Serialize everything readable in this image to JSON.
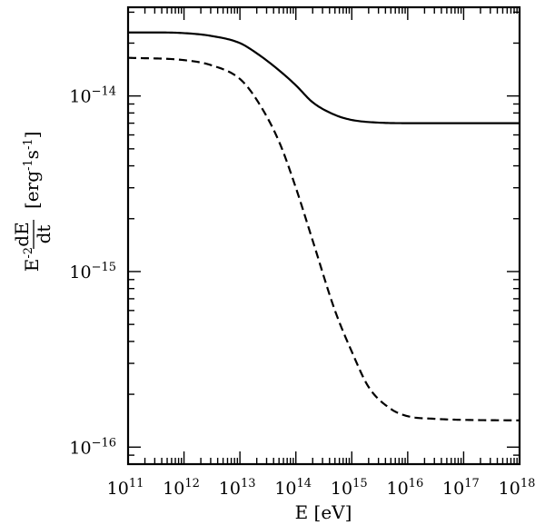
{
  "chart_data": {
    "type": "line",
    "title": "",
    "xlabel": "E [eV]",
    "ylabel": {
      "prefix": "E",
      "prefix_exponent": "-2",
      "numerator": "dE",
      "denominator": "dt",
      "units_open": "[erg",
      "units_exp1": "-1",
      "units_mid": "s",
      "units_exp2": "-1",
      "units_close": "]"
    },
    "x_scale": "log",
    "y_scale": "log",
    "xlim": [
      100000000000.0,
      1e+18
    ],
    "ylim": [
      8e-17,
      3.2e-14
    ],
    "grid": false,
    "legend": "none",
    "x_tick_labels": [
      {
        "value": 100000000000.0,
        "base": "10",
        "exp": "11"
      },
      {
        "value": 1000000000000.0,
        "base": "10",
        "exp": "12"
      },
      {
        "value": 10000000000000.0,
        "base": "10",
        "exp": "13"
      },
      {
        "value": 100000000000000.0,
        "base": "10",
        "exp": "14"
      },
      {
        "value": 1000000000000000.0,
        "base": "10",
        "exp": "15"
      },
      {
        "value": 1e+16,
        "base": "10",
        "exp": "16"
      },
      {
        "value": 1e+17,
        "base": "10",
        "exp": "17"
      },
      {
        "value": 1e+18,
        "base": "10",
        "exp": "18"
      }
    ],
    "y_tick_labels": [
      {
        "value": 1e-16,
        "base": "10",
        "exp": "−16"
      },
      {
        "value": 1e-15,
        "base": "10",
        "exp": "−15"
      },
      {
        "value": 1e-14,
        "base": "10",
        "exp": "−14"
      }
    ],
    "series": [
      {
        "style": "solid",
        "x": [
          100000000000.0,
          300000000000.0,
          1000000000000.0,
          3000000000000.0,
          10000000000000.0,
          20000000000000.0,
          50000000000000.0,
          100000000000000.0,
          200000000000000.0,
          500000000000000.0,
          1000000000000000.0,
          3000000000000000.0,
          1e+16,
          1e+17,
          1e+18
        ],
        "y": [
          2.3e-14,
          2.3e-14,
          2.28e-14,
          2.2e-14,
          2e-14,
          1.75e-14,
          1.4e-14,
          1.15e-14,
          9.2e-15,
          7.8e-15,
          7.3e-15,
          7.05e-15,
          7e-15,
          7e-15,
          7e-15
        ]
      },
      {
        "style": "dashed",
        "x": [
          100000000000.0,
          1000000000000.0,
          3000000000000.0,
          10000000000000.0,
          20000000000000.0,
          50000000000000.0,
          100000000000000.0,
          200000000000000.0,
          500000000000000.0,
          1000000000000000.0,
          2000000000000000.0,
          5000000000000000.0,
          1e+16,
          3e+16,
          1e+17,
          1e+18
        ],
        "y": [
          1.65e-14,
          1.6e-14,
          1.5e-14,
          1.25e-14,
          9.5e-15,
          5.5e-15,
          3e-15,
          1.5e-15,
          6e-16,
          3.5e-16,
          2.2e-16,
          1.65e-16,
          1.5e-16,
          1.45e-16,
          1.43e-16,
          1.42e-16
        ]
      }
    ]
  }
}
